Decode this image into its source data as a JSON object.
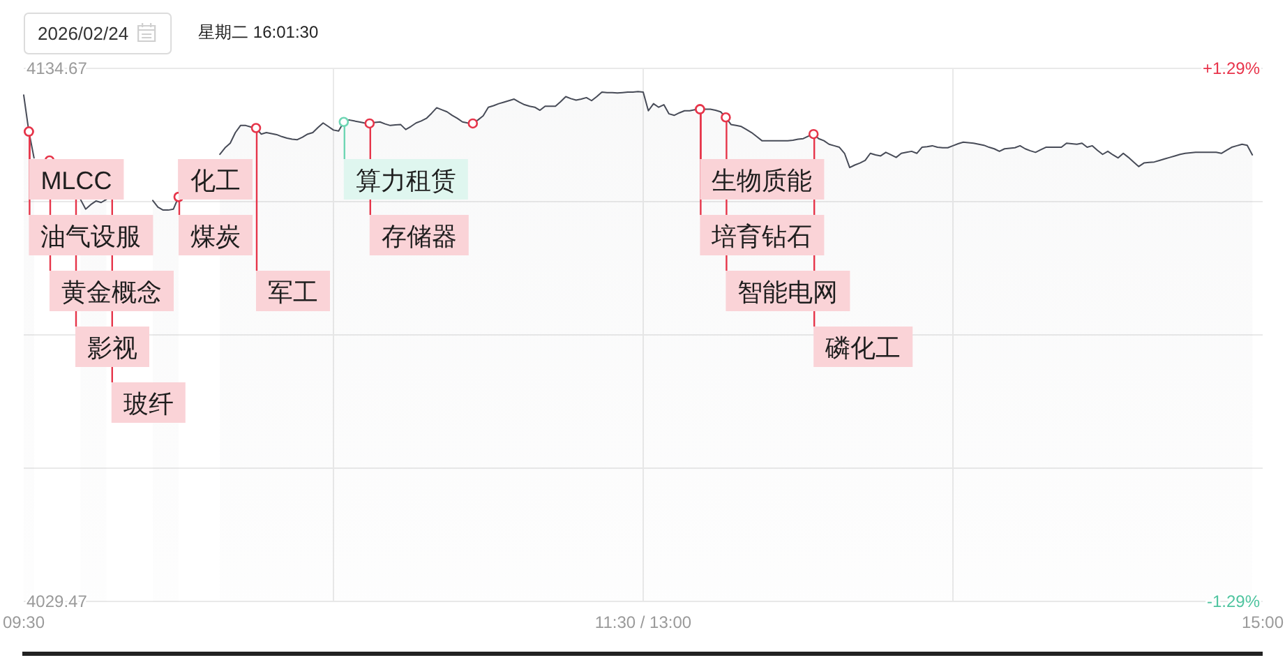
{
  "chart_data": {
    "type": "area",
    "categories": [
      "09:30",
      null,
      null,
      null,
      null,
      null,
      null,
      null,
      null,
      null,
      null,
      null,
      null,
      null,
      null,
      null,
      null,
      null,
      null,
      null,
      null,
      null,
      null,
      null,
      null,
      null,
      null,
      null,
      null,
      null,
      null,
      null,
      null,
      null,
      null,
      null,
      null,
      null,
      null,
      null,
      null,
      null,
      null,
      null,
      null,
      null,
      null,
      null,
      null,
      null,
      null,
      null,
      null,
      null,
      null,
      null,
      null,
      null,
      null,
      null,
      null,
      null,
      null,
      null,
      null,
      null,
      null,
      null,
      null,
      null,
      null,
      null,
      null,
      null,
      null,
      null,
      null,
      null,
      null,
      null,
      null,
      null,
      null,
      null,
      null,
      null,
      null,
      null,
      null,
      null,
      null,
      null,
      null,
      null,
      null,
      null,
      null,
      null,
      null,
      null,
      null,
      null,
      null,
      null,
      null,
      null,
      null,
      null,
      null,
      null,
      null,
      null,
      null,
      null,
      null,
      null,
      null,
      null,
      null,
      null,
      "11:30 / 13:00",
      null,
      null,
      null,
      null,
      null,
      null,
      null,
      null,
      null,
      null,
      null,
      null,
      null,
      null,
      null,
      null,
      null,
      null,
      null,
      null,
      null,
      null,
      null,
      null,
      null,
      null,
      null,
      null,
      null,
      null,
      null,
      null,
      null,
      null,
      null,
      null,
      null,
      null,
      null,
      null,
      null,
      null,
      null,
      null,
      null,
      null,
      null,
      null,
      null,
      null,
      null,
      null,
      null,
      null,
      null,
      null,
      null,
      null,
      null,
      null,
      null,
      null,
      null,
      null,
      null,
      null,
      null,
      null,
      null,
      null,
      null,
      null,
      null,
      null,
      null,
      null,
      null,
      null,
      null,
      null,
      null,
      null,
      null,
      null,
      null,
      null,
      null,
      null,
      null,
      null,
      null,
      null,
      null,
      null,
      null,
      null,
      null,
      null,
      null,
      null,
      null,
      null,
      null,
      null,
      null,
      null,
      null,
      null,
      null,
      null,
      null,
      null,
      null,
      null,
      null,
      null,
      null,
      null,
      null,
      "15:00"
    ],
    "series": [
      {
        "color": "#474b57",
        "values": [
          4129.4,
          4122.2,
          4117.0,
          null,
          null,
          null,
          null,
          null,
          null,
          null,
          null,
          4108.8,
          4106.9,
          4107.8,
          4108.5,
          4108.2,
          4108.8,
          null,
          null,
          null,
          null,
          null,
          null,
          null,
          null,
          4108.6,
          4107.3,
          4106.7,
          4106.7,
          4106.9,
          4109.3,
          null,
          null,
          null,
          null,
          null,
          null,
          null,
          4117.7,
          4119.0,
          4119.9,
          4122.0,
          4123.4,
          4123.4,
          4123.1,
          4122.9,
          4121.7,
          4122.0,
          4121.8,
          4121.6,
          4121.2,
          4120.9,
          4120.7,
          4120.6,
          4121.1,
          4121.7,
          4122.0,
          4123.0,
          4123.9,
          4123.2,
          4122.5,
          4122.3,
          4124.1,
          4124.5,
          4124.3,
          4124.1,
          4123.9,
          4123.8,
          4124.0,
          4124.1,
          4123.7,
          4123.4,
          4123.5,
          4123.6,
          4122.6,
          4123.2,
          4123.9,
          4124.3,
          4124.8,
          4125.8,
          4126.9,
          4126.5,
          4126.1,
          4125.4,
          4124.8,
          4124.1,
          4123.9,
          4123.8,
          4124.5,
          4125.3,
          4127.0,
          4127.3,
          4127.7,
          4128.0,
          4128.3,
          4128.6,
          4128.0,
          4127.5,
          4127.2,
          4127.0,
          4126.4,
          4127.2,
          4127.2,
          4127.2,
          4128.1,
          4129.1,
          4128.7,
          4128.4,
          4128.6,
          4128.9,
          4128.3,
          4129.1,
          4130.0,
          4129.9,
          4129.9,
          4129.8,
          4129.9,
          4130.0,
          4130.0,
          4130.1,
          4130.0,
          4126.3,
          4127.7,
          4127.0,
          4127.5,
          4125.7,
          4125.4,
          4125.9,
          4126.3,
          4126.3,
          4126.5,
          4126.6,
          4126.6,
          4126.6,
          4126.4,
          4126.1,
          4125.0,
          4123.6,
          4123.4,
          4123.2,
          4122.6,
          4122.0,
          4121.2,
          4120.4,
          4120.4,
          4120.4,
          4120.4,
          4120.4,
          4120.4,
          4120.5,
          4120.7,
          4120.8,
          4121.3,
          4121.7,
          4120.8,
          4120.4,
          4119.7,
          4119.4,
          4119.1,
          4117.9,
          4115.1,
          4115.6,
          4116.0,
          4116.5,
          4117.9,
          4117.6,
          4117.4,
          4118.1,
          4117.6,
          4117.1,
          4117.9,
          4118.1,
          4118.3,
          4117.9,
          4119.1,
          4119.2,
          4119.4,
          4119.1,
          4119.0,
          4119.0,
          4119.4,
          4119.8,
          4120.1,
          4120.0,
          4119.9,
          4119.7,
          4119.5,
          4119.1,
          4118.8,
          4118.3,
          4118.8,
          4118.9,
          4119.0,
          4119.4,
          4118.8,
          4118.4,
          4118.1,
          4118.6,
          4119.1,
          4119.1,
          4119.1,
          4119.1,
          4119.9,
          4119.8,
          4119.7,
          4119.9,
          4119.1,
          4119.4,
          4118.5,
          4117.7,
          4118.3,
          4117.6,
          4117.0,
          4117.9,
          4117.1,
          4116.2,
          4115.3,
          4116.0,
          4116.1,
          4116.2,
          4116.5,
          4116.8,
          4117.1,
          4117.4,
          4117.7,
          4117.9,
          4118.0,
          4118.1,
          4118.1,
          4118.1,
          4118.1,
          4118.1,
          4117.9,
          4118.5,
          4119.1,
          4119.4,
          4119.7,
          4119.5,
          4117.6,
          null,
          null
        ]
      },
      {
        "type": "scatter",
        "marker": "circle",
        "color": "#e6354a",
        "values": [
          null,
          4122.2,
          null,
          null,
          null,
          4116.5,
          null,
          null,
          null,
          null,
          null,
          null,
          null,
          null,
          null,
          null,
          null,
          null,
          null,
          null,
          null,
          null,
          null,
          null,
          null,
          null,
          null,
          null,
          null,
          null,
          4109.3,
          null,
          null,
          null,
          null,
          null,
          null,
          null,
          null,
          null,
          null,
          null,
          null,
          null,
          null,
          4122.9,
          null,
          null,
          null,
          null,
          null,
          null,
          null,
          null,
          null,
          null,
          null,
          null,
          null,
          null,
          null,
          null,
          null,
          null,
          null,
          null,
          null,
          4123.8,
          null,
          null,
          null,
          null,
          null,
          null,
          null,
          null,
          null,
          null,
          null,
          null,
          null,
          null,
          null,
          null,
          null,
          null,
          null,
          4123.8,
          null,
          null,
          null,
          null,
          null,
          null,
          null,
          null,
          null,
          null,
          null,
          null,
          null,
          null,
          null,
          null,
          null,
          null,
          null,
          null,
          null,
          null,
          null,
          null,
          null,
          null,
          null,
          null,
          null,
          null,
          null,
          null,
          null,
          null,
          null,
          null,
          null,
          null,
          null,
          null,
          null,
          null,
          null,
          4126.6,
          null,
          null,
          null,
          null,
          4125.0,
          null,
          null,
          null,
          null,
          null,
          null,
          null,
          null,
          null,
          null,
          null,
          null,
          null,
          null,
          null,
          null,
          4121.7,
          null,
          null,
          null,
          null,
          null,
          null,
          null,
          null,
          null,
          null,
          null,
          null,
          null,
          null,
          null,
          null,
          null,
          null,
          null,
          null,
          null,
          null,
          null,
          null,
          null,
          null,
          null,
          null,
          null,
          null,
          null,
          null,
          null,
          null,
          null,
          null,
          null,
          null,
          null,
          null,
          null,
          null,
          null,
          null,
          null,
          null,
          null,
          null,
          null,
          null,
          null,
          null,
          null,
          null,
          null,
          null,
          null,
          null,
          null,
          null,
          null,
          null,
          null,
          null,
          null,
          null,
          null,
          null,
          null,
          null,
          null,
          null,
          null,
          null,
          null,
          null,
          null,
          null,
          null,
          null,
          null,
          null,
          null,
          null,
          null,
          null,
          null
        ],
        "value_labels": [
          null,
          "MLCC",
          null,
          null,
          null,
          "黄金概念",
          null,
          null,
          null,
          null,
          "影视",
          null,
          null,
          null,
          null,
          null,
          null,
          "玻纤",
          null,
          null,
          null,
          null,
          null,
          null,
          null,
          null,
          null,
          null,
          null,
          null,
          "化工",
          null,
          null,
          null,
          null,
          null,
          null,
          null,
          null,
          null,
          null,
          null,
          null,
          null,
          null,
          "军工",
          null,
          null,
          null,
          null,
          null,
          null,
          null,
          null,
          null,
          null,
          null,
          null,
          null,
          null,
          null,
          null,
          null,
          null,
          null,
          null,
          null,
          "存储器",
          null,
          null,
          null,
          null,
          null,
          null,
          null,
          null,
          null,
          null,
          null,
          null,
          null,
          null,
          null,
          null,
          null,
          null,
          null,
          null,
          null,
          null,
          null,
          null,
          null,
          null,
          null,
          null,
          null,
          null,
          null,
          null,
          null,
          null,
          null,
          null,
          null,
          null,
          null,
          null,
          null,
          null,
          null,
          null,
          null,
          null,
          null,
          null,
          null,
          null,
          null,
          null,
          null,
          null,
          null,
          null,
          null,
          null,
          null,
          null,
          null,
          null,
          null,
          "生物质能",
          null,
          null,
          null,
          null,
          "智能电网",
          null,
          null,
          null,
          null,
          null,
          null,
          null,
          null,
          null,
          null,
          null,
          null,
          null,
          null,
          null,
          null,
          "磷化工",
          null,
          null,
          null,
          null,
          null,
          null,
          null,
          null,
          null,
          null,
          null,
          null,
          null,
          null,
          null,
          null,
          null,
          null,
          null,
          null,
          null,
          null,
          null,
          null,
          null,
          null,
          null,
          null,
          null,
          null,
          null,
          null,
          null,
          null,
          null,
          null,
          null,
          null,
          null,
          null,
          null,
          null,
          null,
          null,
          null,
          null,
          null,
          null,
          null,
          null,
          null,
          null,
          null,
          null,
          null,
          null,
          null,
          null,
          null,
          null,
          null,
          null,
          null,
          null,
          null,
          null,
          null,
          null,
          null,
          null,
          null,
          null,
          null,
          null,
          null,
          null,
          null,
          null,
          null,
          null,
          null,
          null,
          null,
          null,
          null,
          null,
          null
        ]
      },
      {
        "type": "scatter",
        "marker": "circle",
        "color": "#6fd6b4",
        "values": [
          null,
          null,
          null,
          null,
          null,
          null,
          null,
          null,
          null,
          null,
          null,
          null,
          null,
          null,
          null,
          null,
          null,
          null,
          null,
          null,
          null,
          null,
          null,
          null,
          null,
          null,
          null,
          null,
          null,
          null,
          null,
          null,
          null,
          null,
          null,
          null,
          null,
          null,
          null,
          null,
          null,
          null,
          null,
          null,
          null,
          null,
          null,
          null,
          null,
          null,
          null,
          null,
          null,
          null,
          null,
          null,
          null,
          null,
          null,
          null,
          null,
          null,
          4124.1,
          null,
          null,
          null,
          null,
          null,
          null,
          null,
          null,
          null,
          null,
          null,
          null,
          null,
          null,
          null,
          null,
          null,
          null,
          null,
          null,
          null,
          null,
          null,
          null,
          null,
          null,
          null,
          null,
          null,
          null,
          null,
          null,
          null,
          null,
          null,
          null,
          null,
          null,
          null,
          null,
          null,
          null,
          null,
          null,
          null,
          null,
          null,
          null,
          null,
          null,
          null,
          null,
          null,
          null,
          null,
          null,
          null,
          null,
          null,
          null,
          null,
          null,
          null,
          null,
          null,
          null,
          null,
          null,
          null,
          null,
          null,
          null,
          null,
          null,
          null,
          null,
          null,
          null,
          null,
          null,
          null,
          null,
          null,
          null,
          null,
          null,
          null,
          null,
          null,
          null,
          null,
          null,
          null,
          null,
          null,
          null,
          null,
          null,
          null,
          null,
          null,
          null,
          null,
          null,
          null,
          null,
          null,
          null,
          null,
          null,
          null,
          null,
          null,
          null,
          null,
          null,
          null,
          null,
          null,
          null,
          null,
          null,
          null,
          null,
          null,
          null,
          null,
          null,
          null,
          null,
          null,
          null,
          null,
          null,
          null,
          null,
          null,
          null,
          null,
          null,
          null,
          null,
          null,
          null,
          null,
          null,
          null,
          null,
          null,
          null,
          null,
          null,
          null,
          null,
          null,
          null,
          null,
          null,
          null,
          null,
          null,
          null,
          null,
          null,
          null,
          null,
          null,
          null,
          null,
          null,
          null,
          null,
          null,
          null,
          null,
          null,
          null,
          null
        ],
        "value_labels": [
          null,
          null,
          null,
          null,
          null,
          null,
          null,
          null,
          null,
          null,
          null,
          null,
          null,
          null,
          null,
          null,
          null,
          null,
          null,
          null,
          null,
          null,
          null,
          null,
          null,
          null,
          null,
          null,
          null,
          null,
          null,
          null,
          null,
          null,
          null,
          null,
          null,
          null,
          null,
          null,
          null,
          null,
          null,
          null,
          null,
          null,
          null,
          null,
          null,
          null,
          null,
          null,
          null,
          null,
          null,
          null,
          null,
          null,
          null,
          null,
          null,
          null,
          "算力租赁",
          null,
          null,
          null,
          null,
          null,
          null,
          null,
          null,
          null,
          null,
          null,
          null,
          null,
          null,
          null,
          null,
          null,
          null,
          null,
          null,
          null,
          null,
          null,
          null,
          null,
          null,
          null,
          null,
          null,
          null,
          null,
          null,
          null,
          null,
          null,
          null,
          null,
          null,
          null,
          null,
          null,
          null,
          null,
          null,
          null,
          null,
          null,
          null,
          null,
          null,
          null,
          null,
          null,
          null,
          null,
          null,
          null,
          null,
          null,
          null,
          null,
          null,
          null,
          null,
          null,
          null,
          null,
          null,
          null,
          null,
          null,
          null,
          null,
          null,
          null,
          null,
          null,
          null,
          null,
          null,
          null,
          null,
          null,
          null,
          null,
          null,
          null,
          null,
          null,
          null,
          null,
          null,
          null,
          null,
          null,
          null,
          null,
          null,
          null,
          null,
          null,
          null,
          null,
          null,
          null,
          null,
          null,
          null,
          null,
          null,
          null,
          null,
          null,
          null,
          null,
          null,
          null,
          null,
          null,
          null,
          null,
          null,
          null,
          null,
          null,
          null,
          null,
          null,
          null,
          null,
          null,
          null,
          null,
          null,
          null,
          null,
          null,
          null,
          null,
          null,
          null,
          null,
          null,
          null,
          null,
          null,
          null,
          null,
          null,
          null,
          null,
          null,
          null,
          null,
          null,
          null,
          null,
          null,
          null,
          null,
          null,
          null,
          null,
          null,
          null,
          null,
          null,
          null,
          null,
          null,
          null,
          null,
          null,
          null,
          null,
          null,
          null,
          null
        ]
      },
      {
        "type": "scatter",
        "marker": "circle",
        "color": "#e6354a",
        "values": [
          null,
          4122.2,
          null,
          null,
          null,
          null,
          null,
          null,
          null,
          null,
          null,
          null,
          null,
          null,
          null,
          null,
          null,
          null,
          null,
          null,
          null,
          null,
          null,
          null,
          null,
          null,
          null,
          null,
          null,
          null,
          4109.3,
          null,
          null,
          null,
          null,
          null,
          null,
          null,
          null,
          null,
          null,
          null,
          null,
          null,
          null,
          null,
          null,
          null,
          null,
          null,
          null,
          null,
          null,
          null,
          null,
          null,
          null,
          null,
          null,
          null,
          null,
          null,
          null,
          null,
          null,
          null,
          null,
          null,
          null,
          null,
          null,
          null,
          null,
          null,
          null,
          null,
          null,
          null,
          null,
          null,
          null,
          null,
          null,
          null,
          null,
          null,
          null,
          null,
          null,
          null,
          null,
          null,
          null,
          null,
          null,
          null,
          null,
          null,
          null,
          null,
          null,
          null,
          null,
          null,
          null,
          null,
          null,
          null,
          null,
          null,
          null,
          null,
          null,
          null,
          null,
          null,
          null,
          null,
          null,
          null,
          null,
          null,
          null,
          null,
          null,
          null,
          null,
          null,
          null,
          null,
          null,
          4126.6,
          null,
          null,
          null,
          null,
          null,
          null,
          null,
          null,
          null,
          null,
          null,
          null,
          null,
          null,
          null,
          null,
          null,
          null,
          null,
          null,
          null,
          null,
          null,
          null,
          null,
          null,
          null,
          null,
          null,
          null,
          null,
          null,
          null,
          null,
          null,
          null,
          null,
          null,
          null,
          null,
          null,
          null,
          null,
          null,
          null,
          null,
          null,
          null,
          null,
          null,
          null,
          null,
          null,
          null,
          null,
          null,
          null,
          null,
          null,
          null,
          null,
          null,
          null,
          null,
          null,
          null,
          null,
          null,
          null,
          null,
          null,
          null,
          null,
          null,
          null,
          null,
          null,
          null,
          null,
          null,
          null,
          null,
          null,
          null,
          null,
          null,
          null,
          null,
          null,
          null,
          null,
          null,
          null,
          null,
          null,
          null,
          null,
          null,
          null,
          null,
          null,
          null,
          null,
          null,
          null,
          null,
          null,
          null,
          null
        ],
        "value_labels": [
          null,
          "油气设服",
          null,
          null,
          null,
          null,
          null,
          null,
          null,
          null,
          null,
          null,
          null,
          null,
          null,
          null,
          null,
          null,
          null,
          null,
          null,
          null,
          null,
          null,
          null,
          null,
          null,
          null,
          null,
          null,
          "煤炭",
          null,
          null,
          null,
          null,
          null,
          null,
          null,
          null,
          null,
          null,
          null,
          null,
          null,
          null,
          null,
          null,
          null,
          null,
          null,
          null,
          null,
          null,
          null,
          null,
          null,
          null,
          null,
          null,
          null,
          null,
          null,
          null,
          null,
          null,
          null,
          null,
          null,
          null,
          null,
          null,
          null,
          null,
          null,
          null,
          null,
          null,
          null,
          null,
          null,
          null,
          null,
          null,
          null,
          null,
          null,
          null,
          null,
          null,
          null,
          null,
          null,
          null,
          null,
          null,
          null,
          null,
          null,
          null,
          null,
          null,
          null,
          null,
          null,
          null,
          null,
          null,
          null,
          null,
          null,
          null,
          null,
          null,
          null,
          null,
          null,
          null,
          null,
          null,
          null,
          null,
          null,
          null,
          null,
          null,
          null,
          null,
          null,
          null,
          null,
          null,
          "培育钻石",
          null,
          null,
          null,
          null,
          null,
          null,
          null,
          null,
          null,
          null,
          null,
          null,
          null,
          null,
          null,
          null,
          null,
          null,
          null,
          null,
          null,
          null,
          null,
          null,
          null,
          null,
          null,
          null,
          null,
          null,
          null,
          null,
          null,
          null,
          null,
          null,
          null,
          null,
          null,
          null,
          null,
          null,
          null,
          null,
          null,
          null,
          null,
          null,
          null,
          null,
          null,
          null,
          null,
          null,
          null,
          null,
          null,
          null,
          null,
          null,
          null,
          null,
          null,
          null,
          null,
          null,
          null,
          null,
          null,
          null,
          null,
          null,
          null,
          null,
          null,
          null,
          null,
          null,
          null,
          null,
          null,
          null,
          null,
          null,
          null,
          null,
          null,
          null,
          null,
          null,
          null,
          null,
          null,
          null,
          null,
          null,
          null,
          null,
          null,
          null,
          null,
          null,
          null,
          null,
          null,
          null,
          null,
          null,
          null
        ]
      }
    ],
    "ylim": [
      4029.47,
      4134.67
    ],
    "yticks": [
      4029.47,
      {
        "value": 4055.77,
        "label": null
      },
      {
        "value": 4082.07,
        "label": null
      },
      {
        "value": 4108.37,
        "label": null
      },
      4134.67
    ],
    "y2lim": [
      -1.29,
      1.29
    ],
    "y2ticks": [
      {
        "value": -1.29,
        "label": "-1.29%"
      },
      {
        "value": 1.29,
        "label": "+1.29%"
      }
    ],
    "grid": true,
    "annotations": [
      "2026/02/24",
      "星期二 16:01:30"
    ]
  }
}
